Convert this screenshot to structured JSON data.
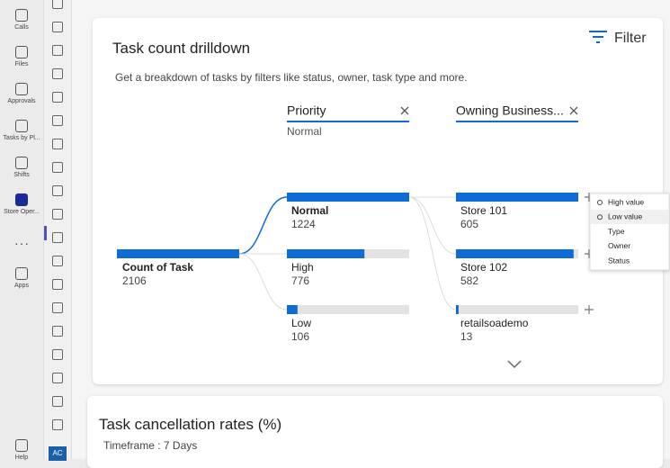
{
  "sidebar": {
    "items": [
      "Calls",
      "Files",
      "Approvals",
      "Tasks by Pl...",
      "Shifts",
      "Store Oper...",
      "Apps",
      "Help"
    ],
    "avatar": "AC"
  },
  "card": {
    "title": "Task count drilldown",
    "filter": "Filter",
    "description": "Get a breakdown of tasks by filters like status, owner, task type and more.",
    "root": {
      "label": "Count of Task",
      "value": 2106
    },
    "levels": [
      {
        "header": "Priority",
        "selected": "Normal",
        "nodes": [
          {
            "label": "Normal",
            "value": 1224
          },
          {
            "label": "High",
            "value": 776
          },
          {
            "label": "Low",
            "value": 106
          }
        ]
      },
      {
        "header": "Owning Business...",
        "nodes": [
          {
            "label": "Store 101",
            "value": 605
          },
          {
            "label": "Store 102",
            "value": 582
          },
          {
            "label": "retailsoademo",
            "value": 13
          }
        ]
      }
    ],
    "menu": [
      "High value",
      "Low value",
      "Type",
      "Owner",
      "Status"
    ]
  },
  "card2": {
    "title": "Task cancellation rates (%)",
    "timeframe": "Timeframe : 7 Days"
  }
}
